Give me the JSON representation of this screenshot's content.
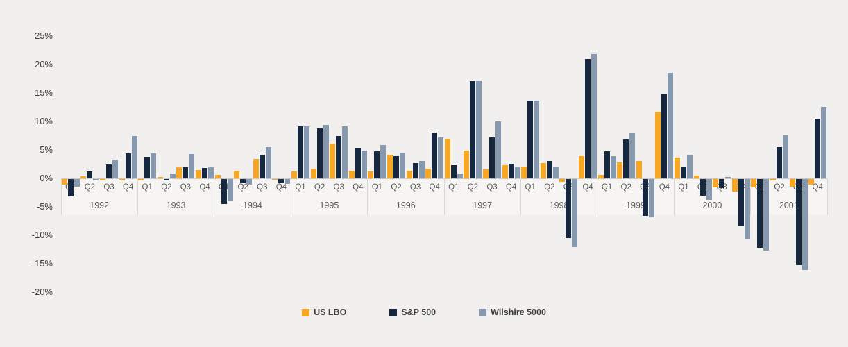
{
  "chart_data": {
    "type": "bar",
    "title": "",
    "xlabel": "",
    "ylabel": "",
    "grid": false,
    "legend_position": "bottom",
    "ylim": [
      -20,
      25
    ],
    "y_ticks": [
      {
        "label": "25%",
        "value": 25
      },
      {
        "label": "20%",
        "value": 20
      },
      {
        "label": "15%",
        "value": 15
      },
      {
        "label": "10%",
        "value": 10
      },
      {
        "label": "5%",
        "value": 5
      },
      {
        "label": "0%",
        "value": 0
      },
      {
        "label": "-5%",
        "value": -5
      },
      {
        "label": "-10%",
        "value": -10
      },
      {
        "label": "-15%",
        "value": -15
      },
      {
        "label": "-20%",
        "value": -20
      }
    ],
    "years": [
      "1992",
      "1993",
      "1994",
      "1995",
      "1996",
      "1997",
      "1998",
      "1999",
      "2000",
      "2001"
    ],
    "quarters": [
      "Q1",
      "Q2",
      "Q3",
      "Q4"
    ],
    "value_unit": "percent_quarterly_return",
    "series": [
      {
        "name": "US LBO",
        "color": "#F7A723",
        "values": [
          -1.0,
          0.4,
          -0.3,
          -0.2,
          -0.2,
          0.3,
          1.9,
          1.5,
          0.6,
          1.4,
          3.4,
          -0.15,
          1.2,
          1.7,
          6.1,
          1.4,
          1.2,
          4.2,
          1.3,
          1.7,
          7.0,
          4.9,
          1.6,
          2.3,
          2.1,
          2.7,
          -0.5,
          3.9,
          0.6,
          2.8,
          3.1,
          11.7,
          3.6,
          0.5,
          -1.5,
          -2.2,
          -1.5,
          -0.3,
          -1.4,
          -1.0
        ]
      },
      {
        "name": "S&P 500",
        "color": "#15283F",
        "values": [
          -3.1,
          1.2,
          2.4,
          4.4,
          3.8,
          -0.3,
          2.0,
          1.8,
          -4.4,
          -0.7,
          4.1,
          -0.7,
          9.1,
          8.8,
          7.4,
          5.4,
          4.8,
          3.9,
          2.7,
          8.0,
          2.3,
          17.1,
          7.2,
          2.6,
          13.7,
          3.1,
          -10.4,
          21.0,
          4.7,
          6.8,
          -6.5,
          14.7,
          2.1,
          -2.9,
          -1.6,
          -8.3,
          -12.1,
          5.5,
          -15.1,
          10.5
        ]
      },
      {
        "name": "Wilshire 5000",
        "color": "#8799AE",
        "values": [
          -1.4,
          -0.2,
          3.3,
          7.5,
          4.4,
          0.9,
          4.3,
          2.0,
          -3.8,
          -1.0,
          5.5,
          -0.8,
          9.2,
          9.4,
          9.2,
          4.9,
          5.8,
          4.5,
          3.0,
          7.2,
          0.9,
          17.2,
          10.0,
          1.9,
          13.6,
          2.1,
          -12.0,
          21.8,
          3.9,
          7.9,
          -6.7,
          18.5,
          4.1,
          -3.7,
          0.2,
          -10.5,
          -12.5,
          7.6,
          -16.0,
          12.6
        ]
      }
    ]
  },
  "legend": {
    "items": [
      {
        "label": "US LBO"
      },
      {
        "label": "S&P 500"
      },
      {
        "label": "Wilshire 5000"
      }
    ]
  },
  "colors": {
    "background": "#f1f0ee",
    "axis_line": "#c9c8c6",
    "year_separator": "#d9d8d5",
    "tick_text": "#404040",
    "category_text": "#595959"
  }
}
